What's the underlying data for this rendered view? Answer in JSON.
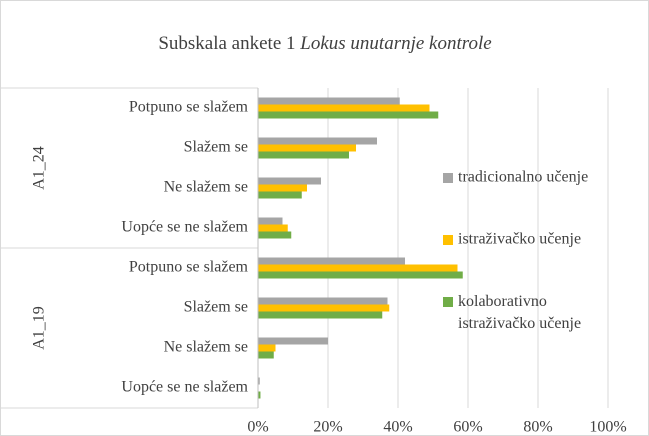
{
  "chart_data": {
    "type": "bar",
    "orientation": "horizontal",
    "title": "Subskala ankete 1",
    "title_italic": "Lokus unutarnje kontrole",
    "groups": [
      {
        "name": "A1_24",
        "categories": [
          "Potpuno se slažem",
          "Slažem se",
          "Ne slažem se",
          "Uopće se ne slažem"
        ]
      },
      {
        "name": "A1_19",
        "categories": [
          "Potpuno se slažem",
          "Slažem se",
          "Ne slažem se",
          "Uopće se ne slažem"
        ]
      }
    ],
    "series": [
      {
        "name": "tradicionalno učenje",
        "color": "#a5a5a5",
        "values": [
          40.5,
          34,
          18,
          7,
          42,
          37,
          20,
          0.5
        ]
      },
      {
        "name": "istraživačko učenje",
        "color": "#ffc000",
        "values": [
          49,
          28,
          14,
          8.5,
          57,
          37.5,
          5,
          0
        ]
      },
      {
        "name": "kolaborativno istraživačko učenje",
        "color": "#70ad47",
        "values": [
          51.5,
          26,
          12.5,
          9.5,
          58.5,
          35.5,
          4.5,
          0.7
        ]
      }
    ],
    "xlim": [
      0,
      100
    ],
    "xticks": [
      {
        "value": 0,
        "label": "0%"
      },
      {
        "value": 20,
        "label": "20%"
      },
      {
        "value": 40,
        "label": "40%"
      },
      {
        "value": 60,
        "label": "60%"
      },
      {
        "value": 80,
        "label": "80%"
      },
      {
        "value": 100,
        "label": "100%"
      }
    ],
    "grid": true,
    "legend": "right"
  }
}
